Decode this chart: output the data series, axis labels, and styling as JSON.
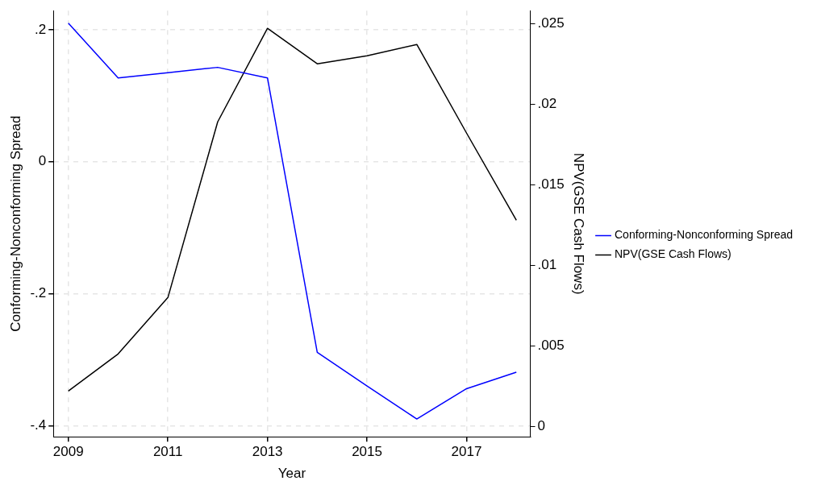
{
  "chart_data": {
    "type": "line",
    "xlabel": "Year",
    "ylabel": "Conforming-Nonconforming Spread",
    "y2label": "NPV(GSE Cash Flows)",
    "x": [
      2009,
      2010,
      2011,
      2012,
      2013,
      2014,
      2015,
      2016,
      2017,
      2018
    ],
    "series": [
      {
        "name": "Conforming-Nonconforming Spread",
        "color": "#0000ff",
        "values": [
          0.21,
          0.127,
          0.135,
          0.143,
          0.127,
          -0.289,
          -0.34,
          -0.39,
          -0.344,
          -0.319
        ]
      },
      {
        "name": "NPV(GSE Cash Flows)",
        "color": "#000000",
        "axis": "y2",
        "values": [
          0.0022,
          0.0045,
          0.008,
          0.0189,
          0.0247,
          0.0225,
          0.023,
          0.0237,
          0.0182,
          0.0128
        ]
      }
    ],
    "xlim": [
      2008.7,
      2018.28
    ],
    "xticks": [
      2009,
      2011,
      2013,
      2015,
      2017
    ],
    "ylim": [
      -0.417,
      0.229
    ],
    "yticks": [
      {
        "value": -0.4,
        "label": "-.4"
      },
      {
        "value": -0.2,
        "label": "-.2"
      },
      0,
      {
        "value": 0.2,
        "label": ".2"
      }
    ],
    "y2lim": [
      -0.00064,
      0.0258
    ],
    "y2ticks": [
      0,
      {
        "value": 0.005,
        "label": ".005"
      },
      {
        "value": 0.01,
        "label": ".01"
      },
      {
        "value": 0.015,
        "label": ".015"
      },
      {
        "value": 0.02,
        "label": ".02"
      },
      {
        "value": 0.025,
        "label": ".025"
      }
    ],
    "grid": true,
    "legend": "right",
    "marker": "none",
    "line_style": "solid"
  }
}
